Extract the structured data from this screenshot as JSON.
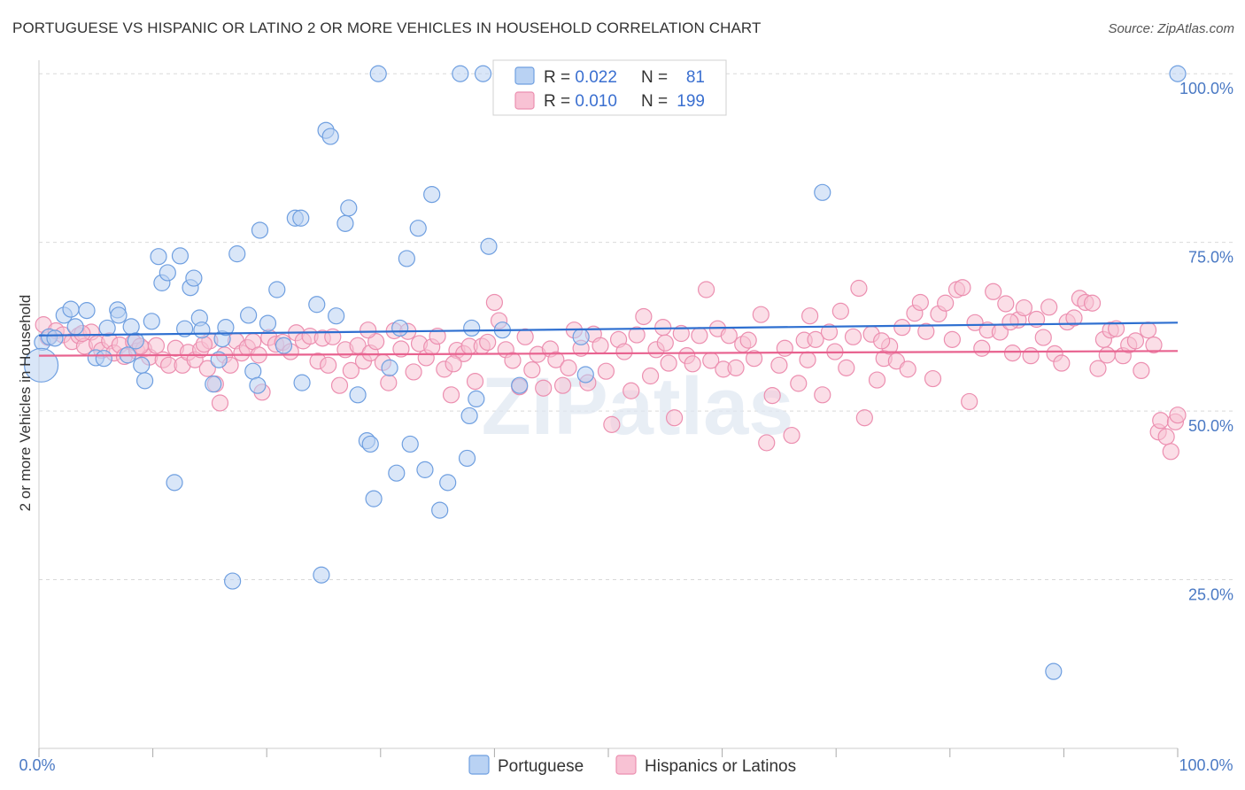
{
  "header": {
    "title": "PORTUGUESE VS HISPANIC OR LATINO 2 OR MORE VEHICLES IN HOUSEHOLD CORRELATION CHART",
    "source": "Source: ZipAtlas.com"
  },
  "watermark": "ZIPatlas",
  "colors": {
    "portuguese_fill": "#b9d2f3",
    "portuguese_stroke": "#6f9fe0",
    "portuguese_line": "#2e6fd0",
    "hispanic_fill": "#f8c2d4",
    "hispanic_stroke": "#ec8fb0",
    "hispanic_line": "#e8628f",
    "tick": "#4a79c4",
    "grid": "#d9d9d9"
  },
  "legend": {
    "rows": [
      {
        "r_label": "R = ",
        "r_value": "0.022",
        "n_label": "N = ",
        "n_value": "81"
      },
      {
        "r_label": "R = ",
        "r_value": "0.010",
        "n_label": "N = ",
        "n_value": "199"
      }
    ]
  },
  "bottom_legend": [
    "Portuguese",
    "Hispanics or Latinos"
  ],
  "chart_data": {
    "type": "scatter",
    "ylabel": "2 or more Vehicles in Household",
    "xlim": [
      0,
      100
    ],
    "ylim": [
      0,
      102
    ],
    "x_tick_labels": [
      "0.0%",
      "100.0%"
    ],
    "y_ticks": [
      {
        "value": 100,
        "label": "100.0%"
      },
      {
        "value": 75,
        "label": "75.0%"
      },
      {
        "value": 50,
        "label": "50.0%"
      },
      {
        "value": 25,
        "label": "25.0%"
      }
    ],
    "series": [
      {
        "name": "Portuguese",
        "trend": [
          [
            0,
            61.2
          ],
          [
            100,
            63.1
          ]
        ],
        "points": [
          [
            0.3,
            60.2
          ],
          [
            0.9,
            61.0
          ],
          [
            1.4,
            60.8
          ],
          [
            2.2,
            64.2
          ],
          [
            2.8,
            65.1
          ],
          [
            3.2,
            62.5
          ],
          [
            4.2,
            64.9
          ],
          [
            5.0,
            57.9
          ],
          [
            5.7,
            57.8
          ],
          [
            6.0,
            62.3
          ],
          [
            6.9,
            65.0
          ],
          [
            7.0,
            64.2
          ],
          [
            7.8,
            58.3
          ],
          [
            8.1,
            62.5
          ],
          [
            8.5,
            60.4
          ],
          [
            9.0,
            56.8
          ],
          [
            9.3,
            54.5
          ],
          [
            9.9,
            63.3
          ],
          [
            10.5,
            72.9
          ],
          [
            10.8,
            69.0
          ],
          [
            11.3,
            70.5
          ],
          [
            11.9,
            39.4
          ],
          [
            12.4,
            73.0
          ],
          [
            12.8,
            62.2
          ],
          [
            13.3,
            68.3
          ],
          [
            13.6,
            69.7
          ],
          [
            14.1,
            63.8
          ],
          [
            14.3,
            62.0
          ],
          [
            15.3,
            54.0
          ],
          [
            15.8,
            57.6
          ],
          [
            16.1,
            60.7
          ],
          [
            16.4,
            62.4
          ],
          [
            17.0,
            24.8
          ],
          [
            17.4,
            73.3
          ],
          [
            18.4,
            64.2
          ],
          [
            18.8,
            55.9
          ],
          [
            19.2,
            53.8
          ],
          [
            19.4,
            76.8
          ],
          [
            20.1,
            63.0
          ],
          [
            20.9,
            68.0
          ],
          [
            21.5,
            59.7
          ],
          [
            22.5,
            78.6
          ],
          [
            23.0,
            78.6
          ],
          [
            23.1,
            54.2
          ],
          [
            24.4,
            65.8
          ],
          [
            24.8,
            25.7
          ],
          [
            25.2,
            91.6
          ],
          [
            25.6,
            90.7
          ],
          [
            26.1,
            64.1
          ],
          [
            26.9,
            77.8
          ],
          [
            27.2,
            80.1
          ],
          [
            28.0,
            52.4
          ],
          [
            28.8,
            45.6
          ],
          [
            29.1,
            45.1
          ],
          [
            29.4,
            37.0
          ],
          [
            29.8,
            100.0
          ],
          [
            30.8,
            56.4
          ],
          [
            31.4,
            40.8
          ],
          [
            31.7,
            62.3
          ],
          [
            32.3,
            72.6
          ],
          [
            32.6,
            45.1
          ],
          [
            33.3,
            77.1
          ],
          [
            33.9,
            41.3
          ],
          [
            34.5,
            82.1
          ],
          [
            35.2,
            35.3
          ],
          [
            35.9,
            39.4
          ],
          [
            37.0,
            100.0
          ],
          [
            37.6,
            43.0
          ],
          [
            37.8,
            49.3
          ],
          [
            38.0,
            62.3
          ],
          [
            38.4,
            51.8
          ],
          [
            39.0,
            100.0
          ],
          [
            39.5,
            74.4
          ],
          [
            40.7,
            62.0
          ],
          [
            42.2,
            53.8
          ],
          [
            47.6,
            61.0
          ],
          [
            48.0,
            55.4
          ],
          [
            68.8,
            82.4
          ],
          [
            89.1,
            11.4
          ],
          [
            100.0,
            100.0
          ],
          [
            0.2,
            56.8
          ]
        ]
      },
      {
        "name": "Hispanics or Latinos",
        "trend": [
          [
            0,
            58.2
          ],
          [
            100,
            58.9
          ]
        ],
        "points": [
          [
            0.4,
            62.8
          ],
          [
            0.8,
            60.9
          ],
          [
            1.5,
            61.9
          ],
          [
            2.1,
            61.3
          ],
          [
            2.9,
            60.3
          ],
          [
            3.5,
            61.2
          ],
          [
            4.0,
            59.6
          ],
          [
            4.6,
            61.7
          ],
          [
            5.1,
            60.0
          ],
          [
            5.5,
            59.0
          ],
          [
            6.2,
            60.4
          ],
          [
            6.6,
            58.6
          ],
          [
            7.1,
            59.8
          ],
          [
            7.5,
            58.1
          ],
          [
            8.3,
            60.2
          ],
          [
            8.6,
            58.9
          ],
          [
            9.2,
            59.2
          ],
          [
            9.7,
            58.0
          ],
          [
            10.3,
            59.7
          ],
          [
            10.9,
            57.6
          ],
          [
            11.4,
            56.8
          ],
          [
            12.0,
            59.3
          ],
          [
            12.6,
            56.8
          ],
          [
            13.1,
            58.7
          ],
          [
            13.7,
            57.6
          ],
          [
            14.2,
            59.1
          ],
          [
            14.8,
            56.3
          ],
          [
            15.0,
            60.4
          ],
          [
            15.5,
            54.0
          ],
          [
            15.9,
            51.2
          ],
          [
            16.3,
            58.3
          ],
          [
            16.8,
            56.8
          ],
          [
            17.3,
            60.4
          ],
          [
            17.8,
            58.6
          ],
          [
            18.3,
            59.4
          ],
          [
            18.8,
            60.3
          ],
          [
            19.3,
            58.3
          ],
          [
            19.6,
            52.8
          ],
          [
            20.2,
            60.9
          ],
          [
            20.8,
            59.9
          ],
          [
            21.4,
            60.2
          ],
          [
            22.1,
            58.8
          ],
          [
            22.6,
            61.6
          ],
          [
            23.2,
            60.4
          ],
          [
            23.8,
            61.1
          ],
          [
            24.5,
            57.4
          ],
          [
            24.9,
            60.8
          ],
          [
            25.4,
            56.8
          ],
          [
            25.8,
            61.0
          ],
          [
            26.4,
            53.8
          ],
          [
            26.9,
            59.1
          ],
          [
            27.4,
            56.0
          ],
          [
            28.0,
            59.7
          ],
          [
            28.5,
            57.4
          ],
          [
            29.1,
            58.6
          ],
          [
            29.6,
            60.3
          ],
          [
            30.2,
            57.2
          ],
          [
            30.7,
            54.2
          ],
          [
            31.2,
            61.9
          ],
          [
            31.8,
            59.2
          ],
          [
            32.4,
            61.8
          ],
          [
            32.9,
            55.8
          ],
          [
            33.4,
            60.0
          ],
          [
            34.0,
            57.9
          ],
          [
            34.5,
            59.5
          ],
          [
            35.0,
            61.1
          ],
          [
            35.6,
            56.2
          ],
          [
            36.2,
            52.4
          ],
          [
            36.7,
            59.0
          ],
          [
            37.3,
            58.5
          ],
          [
            37.8,
            59.6
          ],
          [
            38.3,
            54.4
          ],
          [
            38.9,
            59.6
          ],
          [
            39.4,
            60.2
          ],
          [
            40.0,
            66.1
          ],
          [
            40.4,
            63.4
          ],
          [
            41.0,
            59.1
          ],
          [
            41.6,
            57.5
          ],
          [
            42.2,
            53.6
          ],
          [
            42.7,
            61.0
          ],
          [
            43.3,
            56.1
          ],
          [
            43.8,
            58.4
          ],
          [
            44.3,
            53.4
          ],
          [
            44.9,
            59.2
          ],
          [
            45.4,
            57.6
          ],
          [
            46.0,
            53.8
          ],
          [
            46.5,
            56.4
          ],
          [
            47.0,
            62.0
          ],
          [
            47.6,
            59.3
          ],
          [
            48.2,
            54.2
          ],
          [
            48.7,
            61.4
          ],
          [
            49.3,
            59.7
          ],
          [
            49.8,
            55.9
          ],
          [
            50.3,
            48.0
          ],
          [
            50.9,
            60.6
          ],
          [
            51.4,
            58.8
          ],
          [
            52.0,
            53.0
          ],
          [
            52.5,
            61.3
          ],
          [
            53.1,
            64.0
          ],
          [
            53.7,
            55.2
          ],
          [
            54.2,
            59.1
          ],
          [
            54.8,
            62.4
          ],
          [
            55.3,
            57.1
          ],
          [
            55.8,
            49.0
          ],
          [
            56.4,
            61.5
          ],
          [
            56.9,
            58.2
          ],
          [
            57.4,
            57.0
          ],
          [
            58.0,
            61.2
          ],
          [
            58.6,
            68.0
          ],
          [
            59.0,
            57.5
          ],
          [
            59.6,
            62.2
          ],
          [
            60.1,
            56.2
          ],
          [
            60.6,
            61.2
          ],
          [
            61.2,
            56.4
          ],
          [
            61.8,
            59.9
          ],
          [
            62.3,
            60.5
          ],
          [
            62.8,
            57.8
          ],
          [
            63.4,
            64.3
          ],
          [
            63.9,
            45.3
          ],
          [
            64.4,
            52.3
          ],
          [
            65.0,
            56.8
          ],
          [
            65.5,
            59.3
          ],
          [
            66.1,
            46.4
          ],
          [
            66.7,
            54.1
          ],
          [
            67.2,
            60.5
          ],
          [
            67.7,
            64.1
          ],
          [
            68.2,
            60.6
          ],
          [
            68.8,
            52.4
          ],
          [
            69.4,
            61.7
          ],
          [
            69.9,
            58.8
          ],
          [
            70.4,
            64.8
          ],
          [
            70.9,
            56.4
          ],
          [
            71.5,
            61.0
          ],
          [
            72.0,
            68.2
          ],
          [
            72.5,
            49.0
          ],
          [
            73.1,
            61.4
          ],
          [
            73.6,
            54.6
          ],
          [
            74.2,
            57.8
          ],
          [
            74.7,
            59.6
          ],
          [
            75.3,
            57.4
          ],
          [
            75.8,
            62.4
          ],
          [
            76.3,
            56.2
          ],
          [
            76.9,
            64.5
          ],
          [
            77.4,
            66.1
          ],
          [
            77.9,
            61.8
          ],
          [
            78.5,
            54.8
          ],
          [
            79.0,
            64.4
          ],
          [
            79.6,
            66.0
          ],
          [
            80.2,
            60.6
          ],
          [
            80.6,
            68.0
          ],
          [
            81.1,
            68.3
          ],
          [
            81.7,
            51.4
          ],
          [
            82.2,
            63.1
          ],
          [
            82.8,
            59.3
          ],
          [
            83.3,
            62.0
          ],
          [
            83.8,
            67.7
          ],
          [
            84.4,
            61.7
          ],
          [
            84.9,
            65.9
          ],
          [
            85.5,
            58.6
          ],
          [
            86.0,
            63.5
          ],
          [
            86.5,
            65.3
          ],
          [
            87.1,
            58.2
          ],
          [
            87.6,
            63.6
          ],
          [
            88.2,
            60.9
          ],
          [
            88.7,
            65.4
          ],
          [
            89.2,
            58.5
          ],
          [
            89.8,
            57.1
          ],
          [
            90.3,
            63.2
          ],
          [
            90.9,
            63.8
          ],
          [
            91.4,
            66.7
          ],
          [
            91.9,
            66.1
          ],
          [
            92.5,
            66.0
          ],
          [
            93.0,
            56.3
          ],
          [
            93.5,
            60.6
          ],
          [
            94.1,
            62.0
          ],
          [
            94.6,
            62.2
          ],
          [
            95.2,
            58.2
          ],
          [
            95.7,
            59.8
          ],
          [
            96.3,
            60.4
          ],
          [
            96.8,
            56.0
          ],
          [
            97.4,
            62.0
          ],
          [
            97.9,
            59.8
          ],
          [
            98.3,
            46.9
          ],
          [
            98.5,
            48.6
          ],
          [
            99.0,
            46.2
          ],
          [
            99.4,
            44.0
          ],
          [
            99.8,
            48.4
          ],
          [
            100.0,
            49.4
          ],
          [
            85.3,
            63.2
          ],
          [
            67.5,
            57.6
          ],
          [
            74.0,
            60.4
          ],
          [
            55.0,
            60.1
          ],
          [
            28.9,
            62.0
          ],
          [
            8.9,
            59.6
          ],
          [
            3.8,
            61.5
          ],
          [
            14.5,
            59.9
          ],
          [
            36.4,
            57.0
          ],
          [
            93.8,
            58.3
          ]
        ]
      }
    ]
  }
}
